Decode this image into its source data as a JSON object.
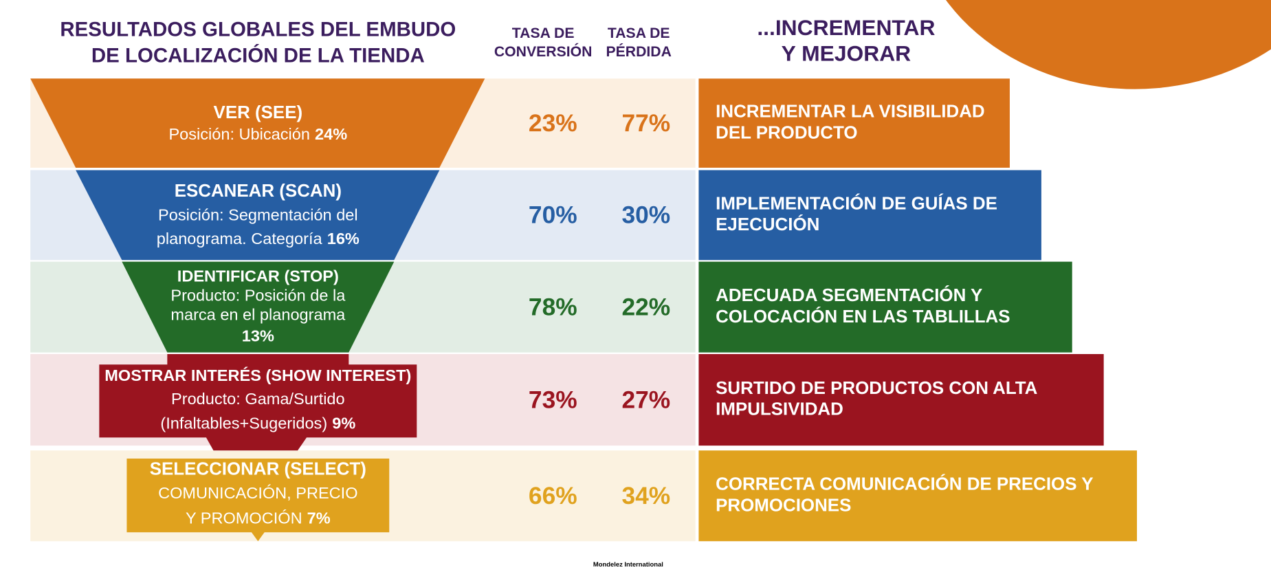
{
  "header": {
    "title": [
      "RESULTADOS GLOBALES DEL EMBUDO",
      "DE LOCALIZACIÓN DE LA TIENDA"
    ],
    "conversion_header": [
      "TASA DE",
      "CONVERSIÓN"
    ],
    "loss_header": [
      "TASA DE",
      "PÉRDIDA"
    ],
    "actions_header": [
      "...INCREMENTAR",
      "Y MEJORAR"
    ]
  },
  "stages": [
    {
      "name": "VER (SEE)",
      "description": [
        "Posición: Ubicación"
      ],
      "share": "24%",
      "conversion": "23%",
      "loss": "77%",
      "action": [
        "INCREMENTAR LA VISIBILIDAD",
        "DEL PRODUCTO"
      ],
      "color": "#d9731a"
    },
    {
      "name": "ESCANEAR (SCAN)",
      "description": [
        "Posición: Segmentación del",
        "planograma. Categoría"
      ],
      "share": "16%",
      "conversion": "70%",
      "loss": "30%",
      "action": [
        "IMPLEMENTACIÓN DE GUÍAS DE",
        "EJECUCIÓN"
      ],
      "color": "#265ea3"
    },
    {
      "name": "IDENTIFICAR (STOP)",
      "description": [
        "Producto: Posición de la",
        "marca en el planograma"
      ],
      "share": "13%",
      "conversion": "78%",
      "loss": "22%",
      "action": [
        "ADECUADA SEGMENTACIÓN Y",
        "COLOCACIÓN EN LAS TABLILLAS"
      ],
      "color": "#236b28"
    },
    {
      "name": "MOSTRAR INTERÉS (SHOW INTEREST)",
      "description": [
        "Producto: Gama/Surtido",
        "(Infaltables+Sugeridos)"
      ],
      "share": "9%",
      "conversion": "73%",
      "loss": "27%",
      "action": [
        "SURTIDO DE PRODUCTOS CON ALTA",
        "IMPULSIVIDAD"
      ],
      "color": "#9a141f"
    },
    {
      "name": "SELECCIONAR (SELECT)",
      "description": [
        "COMUNICACIÓN, PRECIO",
        "Y PROMOCIÓN"
      ],
      "share": "7%",
      "conversion": "66%",
      "loss": "34%",
      "action": [
        "CORRECTA COMUNICACIÓN DE PRECIOS Y",
        "PROMOCIONES"
      ],
      "color": "#e0a21e"
    }
  ],
  "footer": "Mondelez International"
}
